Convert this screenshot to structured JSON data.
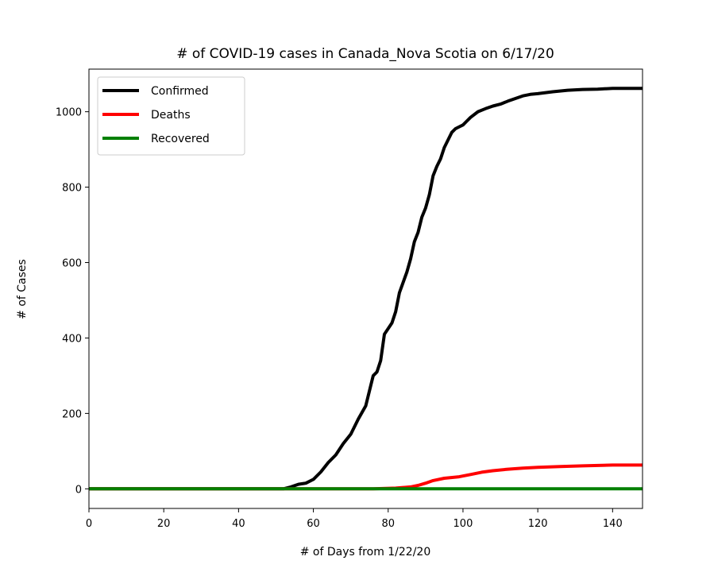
{
  "chart_data": {
    "type": "line",
    "title": "# of COVID-19 cases in Canada_Nova Scotia on 6/17/20",
    "xlabel": "# of Days from 1/22/20",
    "ylabel": "# of Cases",
    "xlim": [
      0,
      148
    ],
    "ylim": [
      -52,
      1113
    ],
    "xticks": [
      0,
      20,
      40,
      60,
      80,
      100,
      120,
      140
    ],
    "yticks": [
      0,
      200,
      400,
      600,
      800,
      1000
    ],
    "grid": false,
    "legend_position": "top-left",
    "series": [
      {
        "name": "Confirmed",
        "color": "#000000",
        "points": [
          [
            0,
            0
          ],
          [
            52,
            0
          ],
          [
            54,
            5
          ],
          [
            56,
            12
          ],
          [
            58,
            15
          ],
          [
            60,
            25
          ],
          [
            62,
            45
          ],
          [
            64,
            70
          ],
          [
            66,
            90
          ],
          [
            68,
            120
          ],
          [
            70,
            145
          ],
          [
            72,
            185
          ],
          [
            74,
            220
          ],
          [
            75,
            260
          ],
          [
            76,
            300
          ],
          [
            77,
            310
          ],
          [
            78,
            340
          ],
          [
            79,
            410
          ],
          [
            81,
            440
          ],
          [
            82,
            470
          ],
          [
            83,
            520
          ],
          [
            85,
            575
          ],
          [
            86,
            610
          ],
          [
            87,
            655
          ],
          [
            88,
            680
          ],
          [
            89,
            720
          ],
          [
            90,
            745
          ],
          [
            91,
            780
          ],
          [
            92,
            830
          ],
          [
            93,
            855
          ],
          [
            94,
            875
          ],
          [
            95,
            905
          ],
          [
            96,
            925
          ],
          [
            97,
            945
          ],
          [
            98,
            955
          ],
          [
            99,
            960
          ],
          [
            100,
            965
          ],
          [
            101,
            975
          ],
          [
            102,
            985
          ],
          [
            104,
            1000
          ],
          [
            106,
            1008
          ],
          [
            108,
            1015
          ],
          [
            110,
            1020
          ],
          [
            112,
            1028
          ],
          [
            114,
            1035
          ],
          [
            116,
            1042
          ],
          [
            118,
            1046
          ],
          [
            120,
            1048
          ],
          [
            124,
            1053
          ],
          [
            128,
            1057
          ],
          [
            132,
            1059
          ],
          [
            136,
            1060
          ],
          [
            140,
            1062
          ],
          [
            148,
            1062
          ]
        ]
      },
      {
        "name": "Deaths",
        "color": "#ff0000",
        "points": [
          [
            0,
            0
          ],
          [
            76,
            0
          ],
          [
            82,
            2
          ],
          [
            86,
            5
          ],
          [
            88,
            9
          ],
          [
            90,
            15
          ],
          [
            92,
            22
          ],
          [
            95,
            28
          ],
          [
            99,
            32
          ],
          [
            102,
            38
          ],
          [
            105,
            44
          ],
          [
            108,
            48
          ],
          [
            112,
            52
          ],
          [
            116,
            55
          ],
          [
            120,
            57
          ],
          [
            126,
            59
          ],
          [
            132,
            61
          ],
          [
            140,
            63
          ],
          [
            148,
            63
          ]
        ]
      },
      {
        "name": "Recovered",
        "color": "#008000",
        "points": [
          [
            0,
            0
          ],
          [
            148,
            0
          ]
        ]
      }
    ]
  }
}
